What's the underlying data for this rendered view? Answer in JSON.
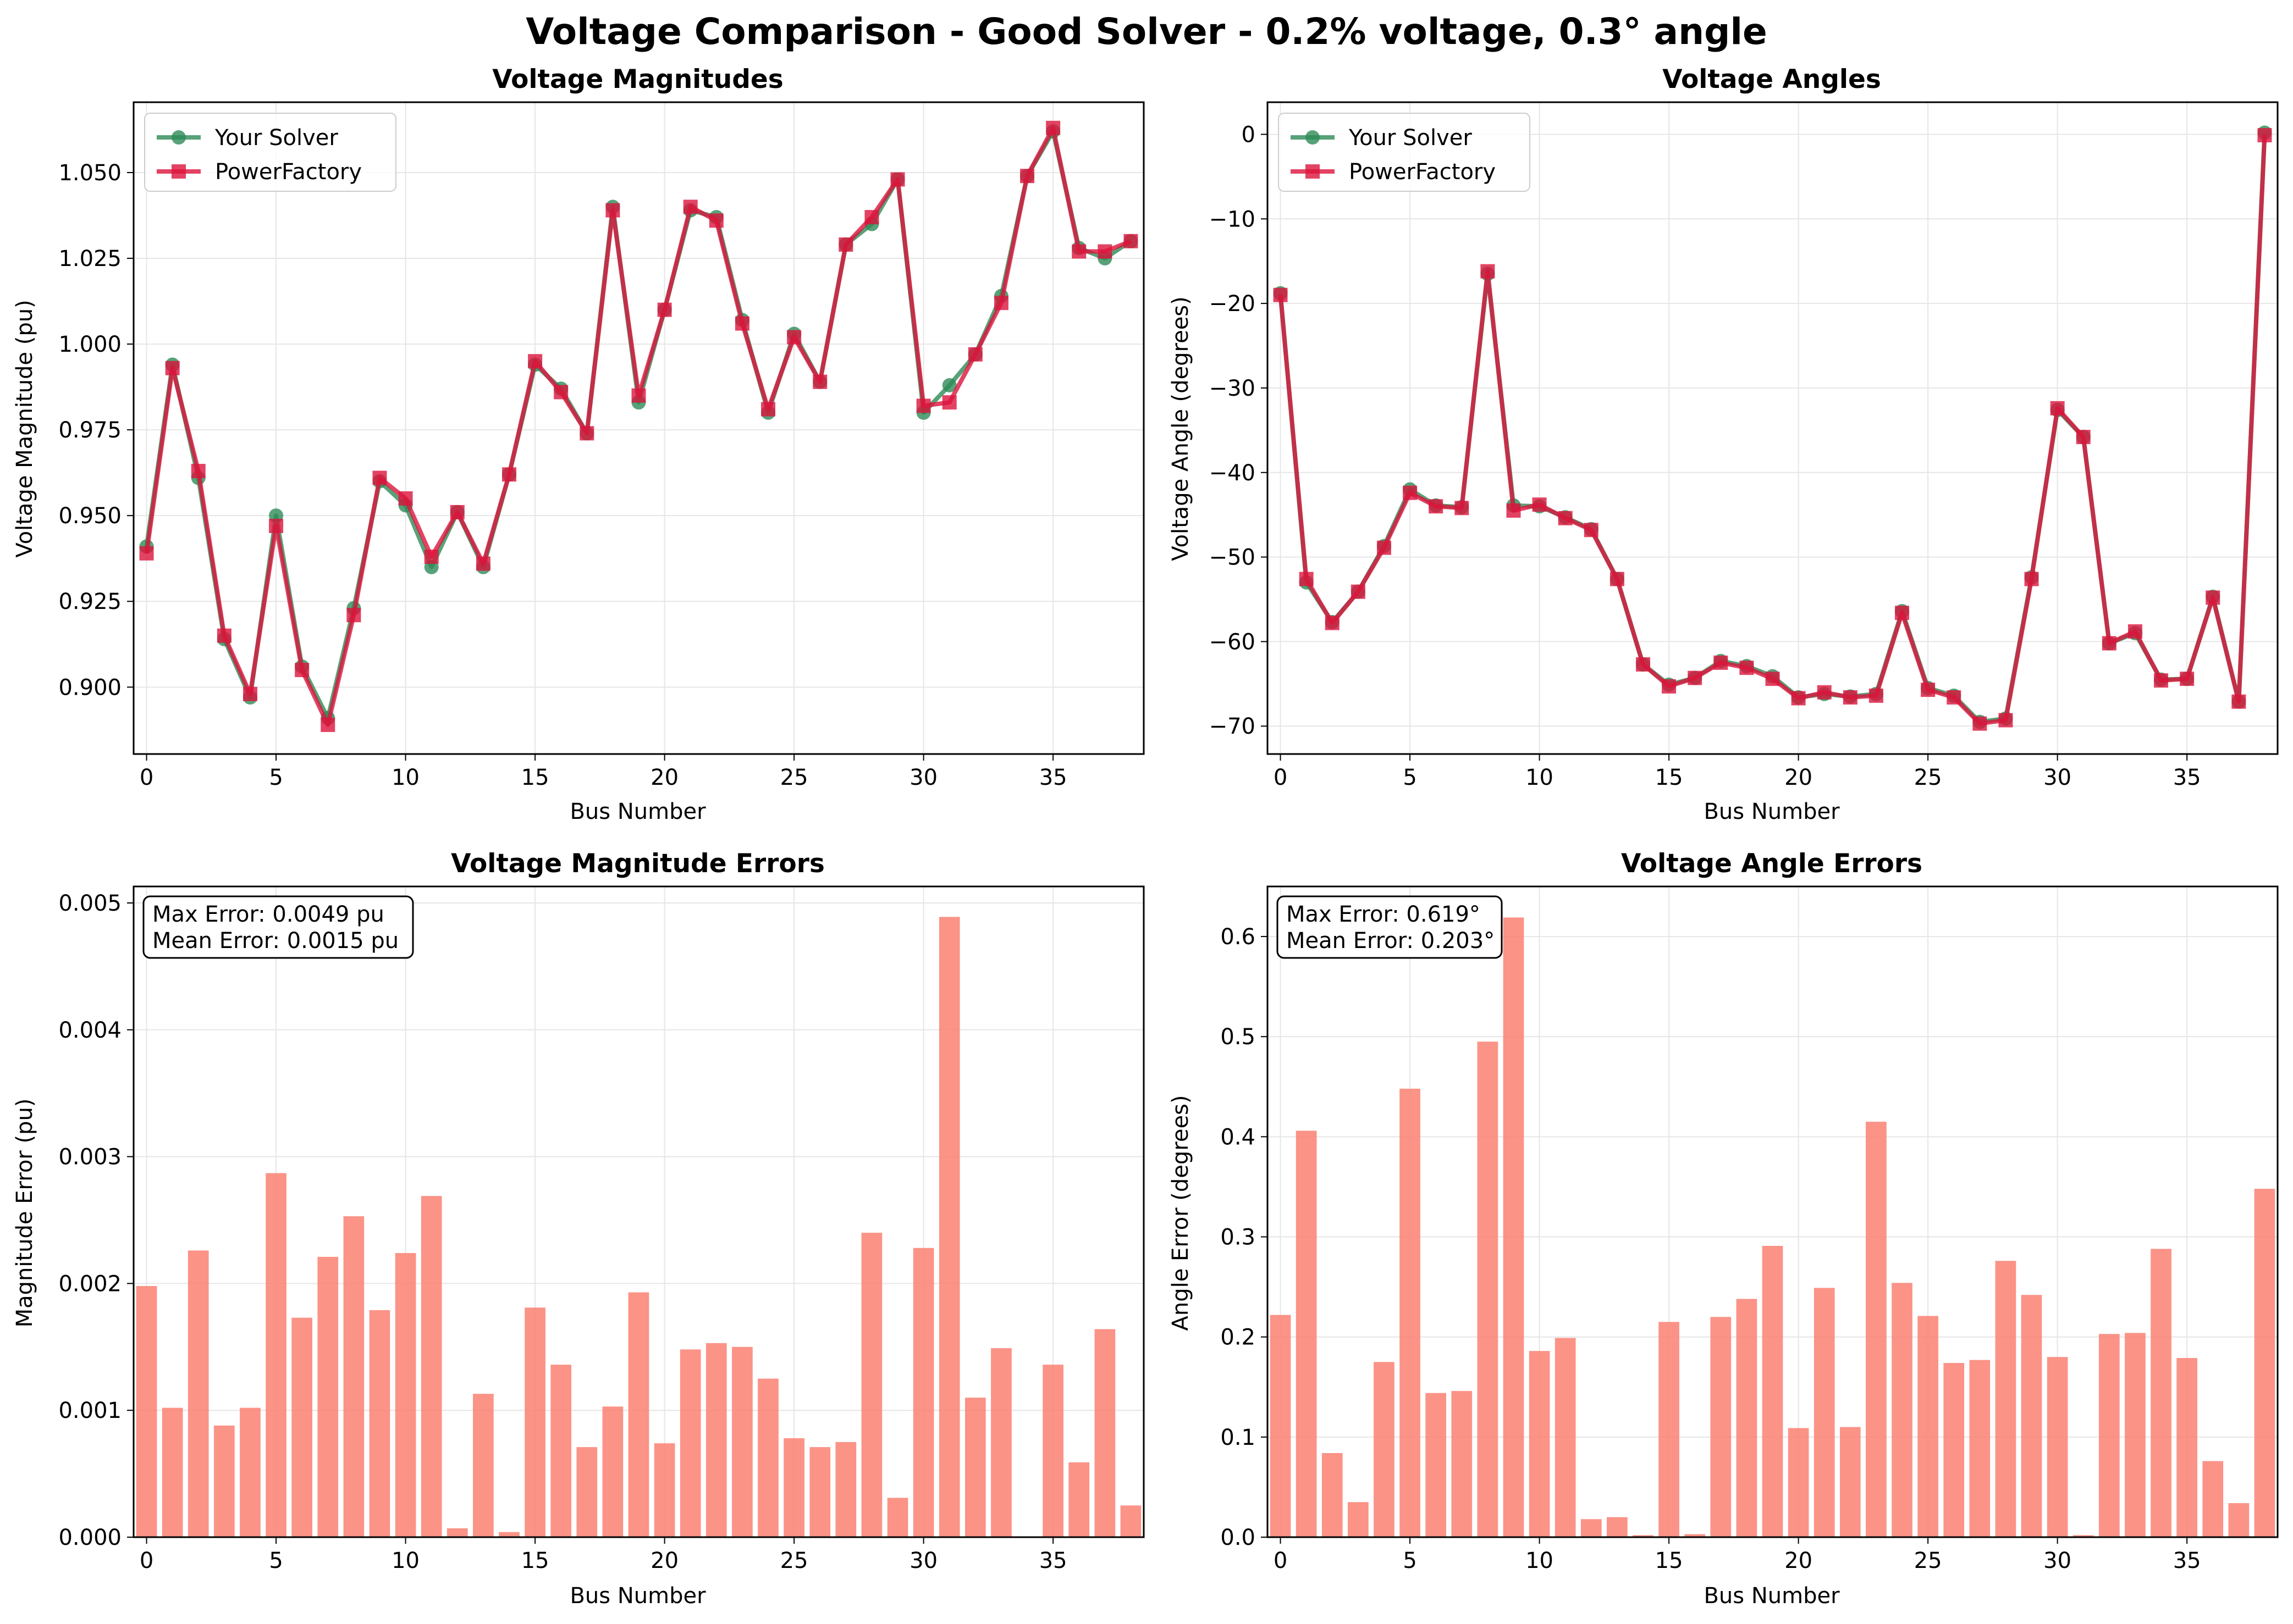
{
  "figure": {
    "title": "Voltage Comparison - Good Solver - 0.2% voltage, 0.3° angle"
  },
  "colors": {
    "solver": "#2e8b57",
    "powerfactory": "#dc143c",
    "error_bar": "#fa8072",
    "grid": "#e6e6e6"
  },
  "chart_data": [
    {
      "type": "line",
      "title": "Voltage Magnitudes",
      "xlabel": "Bus Number",
      "ylabel": "Voltage Magnitude (pu)",
      "xlim": [
        -0.5,
        38.5
      ],
      "ylim": [
        0.8805,
        1.0705
      ],
      "xticks": [
        0,
        5,
        10,
        15,
        20,
        25,
        30,
        35
      ],
      "xtick_labels": [
        "0",
        "5",
        "10",
        "15",
        "20",
        "25",
        "30",
        "35"
      ],
      "yticks": [
        0.9,
        0.925,
        0.95,
        0.975,
        1.0,
        1.025,
        1.05
      ],
      "ytick_labels": [
        "0.900",
        "0.925",
        "0.950",
        "0.975",
        "1.000",
        "1.025",
        "1.050"
      ],
      "legend": "top-left",
      "grid": true,
      "x": [
        0,
        1,
        2,
        3,
        4,
        5,
        6,
        7,
        8,
        9,
        10,
        11,
        12,
        13,
        14,
        15,
        16,
        17,
        18,
        19,
        20,
        21,
        22,
        23,
        24,
        25,
        26,
        27,
        28,
        29,
        30,
        31,
        32,
        33,
        34,
        35,
        36,
        37,
        38
      ],
      "series": [
        {
          "name": "Your Solver",
          "marker": "circle",
          "values": [
            0.941,
            0.994,
            0.961,
            0.914,
            0.897,
            0.95,
            0.906,
            0.891,
            0.923,
            0.96,
            0.953,
            0.935,
            0.951,
            0.935,
            0.962,
            0.994,
            0.987,
            0.974,
            1.04,
            0.983,
            1.01,
            1.039,
            1.037,
            1.007,
            0.98,
            1.003,
            0.989,
            1.029,
            1.035,
            1.048,
            0.98,
            0.988,
            0.997,
            1.014,
            1.049,
            1.062,
            1.028,
            1.025,
            1.03
          ]
        },
        {
          "name": "PowerFactory",
          "marker": "square",
          "values": [
            0.939,
            0.993,
            0.963,
            0.915,
            0.898,
            0.947,
            0.905,
            0.889,
            0.921,
            0.961,
            0.955,
            0.938,
            0.951,
            0.936,
            0.962,
            0.995,
            0.986,
            0.974,
            1.039,
            0.985,
            1.01,
            1.04,
            1.036,
            1.006,
            0.981,
            1.002,
            0.989,
            1.029,
            1.037,
            1.048,
            0.982,
            0.983,
            0.997,
            1.012,
            1.049,
            1.063,
            1.027,
            1.027,
            1.03
          ]
        }
      ]
    },
    {
      "type": "line",
      "title": "Voltage Angles",
      "xlabel": "Bus Number",
      "ylabel": "Voltage Angle (degrees)",
      "xlim": [
        -0.5,
        38.5
      ],
      "ylim": [
        -73.3,
        3.8
      ],
      "xticks": [
        0,
        5,
        10,
        15,
        20,
        25,
        30,
        35
      ],
      "xtick_labels": [
        "0",
        "5",
        "10",
        "15",
        "20",
        "25",
        "30",
        "35"
      ],
      "yticks": [
        -70,
        -60,
        -50,
        -40,
        -30,
        -20,
        -10,
        0
      ],
      "ytick_labels": [
        "−70",
        "−60",
        "−50",
        "−40",
        "−30",
        "−20",
        "−10",
        "0"
      ],
      "legend": "top-left",
      "grid": true,
      "x": [
        0,
        1,
        2,
        3,
        4,
        5,
        6,
        7,
        8,
        9,
        10,
        11,
        12,
        13,
        14,
        15,
        16,
        17,
        18,
        19,
        20,
        21,
        22,
        23,
        24,
        25,
        26,
        27,
        28,
        29,
        30,
        31,
        32,
        33,
        34,
        35,
        36,
        37,
        38
      ],
      "series": [
        {
          "name": "Your Solver",
          "marker": "circle",
          "values": [
            -18.8,
            -53.0,
            -57.7,
            -54.1,
            -48.7,
            -42.0,
            -43.9,
            -44.1,
            -16.5,
            -43.9,
            -44.0,
            -45.3,
            -46.7,
            -52.6,
            -62.7,
            -65.1,
            -64.3,
            -62.3,
            -62.9,
            -64.1,
            -66.6,
            -66.2,
            -66.5,
            -66.2,
            -56.4,
            -65.5,
            -66.4,
            -69.5,
            -69.1,
            -52.4,
            -32.6,
            -35.8,
            -60.2,
            -59.0,
            -64.5,
            -64.4,
            -54.7,
            -67.1,
            0.2
          ]
        },
        {
          "name": "PowerFactory",
          "marker": "square",
          "values": [
            -19.0,
            -52.6,
            -57.8,
            -54.1,
            -48.9,
            -42.4,
            -44.0,
            -44.2,
            -16.2,
            -44.5,
            -43.8,
            -45.4,
            -46.8,
            -52.6,
            -62.7,
            -65.3,
            -64.3,
            -62.5,
            -63.1,
            -64.4,
            -66.7,
            -66.0,
            -66.6,
            -66.4,
            -56.6,
            -65.7,
            -66.6,
            -69.7,
            -69.3,
            -52.6,
            -32.4,
            -35.8,
            -60.2,
            -58.8,
            -64.6,
            -64.4,
            -54.8,
            -67.1,
            -0.1
          ]
        }
      ]
    },
    {
      "type": "bar",
      "title": "Voltage Magnitude Errors",
      "xlabel": "Bus Number",
      "ylabel": "Magnitude Error (pu)",
      "xlim": [
        -0.5,
        38.5
      ],
      "ylim": [
        0,
        0.00513
      ],
      "xticks": [
        0,
        5,
        10,
        15,
        20,
        25,
        30,
        35
      ],
      "xtick_labels": [
        "0",
        "5",
        "10",
        "15",
        "20",
        "25",
        "30",
        "35"
      ],
      "yticks": [
        0,
        0.001,
        0.002,
        0.003,
        0.004,
        0.005
      ],
      "ytick_labels": [
        "0.000",
        "0.001",
        "0.002",
        "0.003",
        "0.004",
        "0.005"
      ],
      "grid": true,
      "annotation": [
        "Max Error: 0.0049 pu",
        "Mean Error: 0.0015 pu"
      ],
      "x": [
        0,
        1,
        2,
        3,
        4,
        5,
        6,
        7,
        8,
        9,
        10,
        11,
        12,
        13,
        14,
        15,
        16,
        17,
        18,
        19,
        20,
        21,
        22,
        23,
        24,
        25,
        26,
        27,
        28,
        29,
        30,
        31,
        32,
        33,
        34,
        35,
        36,
        37,
        38
      ],
      "values": [
        0.00198,
        0.00102,
        0.00226,
        0.00088,
        0.00102,
        0.00287,
        0.00173,
        0.00221,
        0.00253,
        0.00179,
        0.00224,
        0.00269,
        7e-05,
        0.00113,
        4e-05,
        0.00181,
        0.00136,
        0.00071,
        0.00103,
        0.00193,
        0.00074,
        0.00148,
        0.00153,
        0.0015,
        0.00125,
        0.00078,
        0.00071,
        0.00075,
        0.0024,
        0.00031,
        0.00228,
        0.00489,
        0.0011,
        0.00149,
        0.0,
        0.00136,
        0.00059,
        0.00164,
        0.00025
      ]
    },
    {
      "type": "bar",
      "title": "Voltage Angle Errors",
      "xlabel": "Bus Number",
      "ylabel": "Angle Error (degrees)",
      "xlim": [
        -0.5,
        38.5
      ],
      "ylim": [
        0,
        0.65
      ],
      "xticks": [
        0,
        5,
        10,
        15,
        20,
        25,
        30,
        35
      ],
      "xtick_labels": [
        "0",
        "5",
        "10",
        "15",
        "20",
        "25",
        "30",
        "35"
      ],
      "yticks": [
        0,
        0.1,
        0.2,
        0.3,
        0.4,
        0.5,
        0.6
      ],
      "ytick_labels": [
        "0.0",
        "0.1",
        "0.2",
        "0.3",
        "0.4",
        "0.5",
        "0.6"
      ],
      "grid": true,
      "annotation": [
        "Max Error: 0.619°",
        "Mean Error: 0.203°"
      ],
      "x": [
        0,
        1,
        2,
        3,
        4,
        5,
        6,
        7,
        8,
        9,
        10,
        11,
        12,
        13,
        14,
        15,
        16,
        17,
        18,
        19,
        20,
        21,
        22,
        23,
        24,
        25,
        26,
        27,
        28,
        29,
        30,
        31,
        32,
        33,
        34,
        35,
        36,
        37,
        38
      ],
      "values": [
        0.222,
        0.406,
        0.084,
        0.035,
        0.175,
        0.448,
        0.144,
        0.146,
        0.495,
        0.619,
        0.186,
        0.199,
        0.018,
        0.02,
        0.002,
        0.215,
        0.003,
        0.22,
        0.238,
        0.291,
        0.109,
        0.249,
        0.11,
        0.415,
        0.254,
        0.221,
        0.174,
        0.177,
        0.276,
        0.242,
        0.18,
        0.002,
        0.203,
        0.204,
        0.288,
        0.179,
        0.076,
        0.034,
        0.348
      ]
    }
  ]
}
